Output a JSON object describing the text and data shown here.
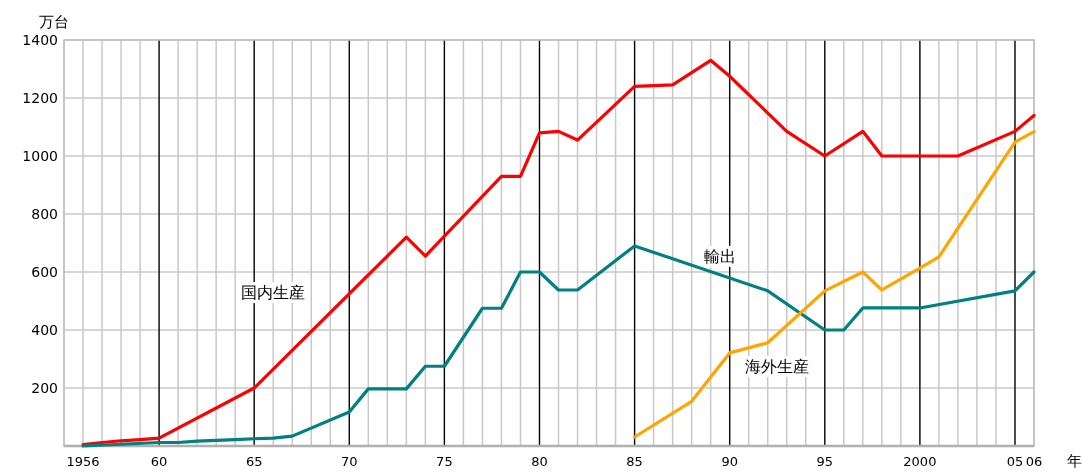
{
  "chart_data": {
    "type": "line",
    "ylabel": "万台",
    "xlabel": "年",
    "xlim": [
      1955,
      2006
    ],
    "ylim": [
      0,
      1400
    ],
    "xticks": [
      {
        "value": 1956,
        "label": "1956"
      },
      {
        "value": 1960,
        "label": "60"
      },
      {
        "value": 1965,
        "label": "65"
      },
      {
        "value": 1970,
        "label": "70"
      },
      {
        "value": 1975,
        "label": "75"
      },
      {
        "value": 1980,
        "label": "80"
      },
      {
        "value": 1985,
        "label": "85"
      },
      {
        "value": 1990,
        "label": "90"
      },
      {
        "value": 1995,
        "label": "95"
      },
      {
        "value": 2000,
        "label": "2000"
      },
      {
        "value": 2005,
        "label": "05"
      },
      {
        "value": 2006,
        "label": "06"
      }
    ],
    "yticks": [
      200,
      400,
      600,
      800,
      1000,
      1200,
      1400
    ],
    "grid": true,
    "legend": false,
    "marker": "none",
    "line_style": "solid",
    "series": [
      {
        "name": "国内生産",
        "color": "#ff0000",
        "x": [
          1956,
          1957,
          1958,
          1959,
          1960,
          1965,
          1973,
          1974,
          1978,
          1979,
          1980,
          1981,
          1982,
          1985,
          1987,
          1989,
          1990,
          1993,
          1995,
          1997,
          1998,
          2002,
          2005,
          2006
        ],
        "values": [
          5,
          12,
          18,
          22,
          27,
          200,
          720,
          655,
          930,
          930,
          1080,
          1085,
          1055,
          1240,
          1245,
          1330,
          1275,
          1085,
          1000,
          1085,
          1000,
          1000,
          1085,
          1140
        ]
      },
      {
        "name": "輸出",
        "color": "#008080",
        "x": [
          1956,
          1960,
          1961,
          1962,
          1964,
          1965,
          1966,
          1967,
          1970,
          1971,
          1973,
          1974,
          1975,
          1977,
          1978,
          1979,
          1980,
          1981,
          1982,
          1985,
          1992,
          1995,
          1996,
          1997,
          2000,
          2005,
          2006
        ],
        "values": [
          0,
          12,
          12,
          17,
          22,
          25,
          27,
          34,
          117,
          197,
          197,
          275,
          275,
          475,
          475,
          600,
          600,
          538,
          538,
          690,
          535,
          400,
          400,
          476,
          476,
          535,
          600
        ]
      },
      {
        "name": "海外生産",
        "color": "#ffa500",
        "x": [
          1985,
          1988,
          1990,
          1992,
          1995,
          1997,
          1998,
          2000,
          2001,
          2005,
          2006
        ],
        "values": [
          31,
          154,
          321,
          356,
          535,
          600,
          538,
          613,
          652,
          1048,
          1084
        ]
      }
    ]
  }
}
